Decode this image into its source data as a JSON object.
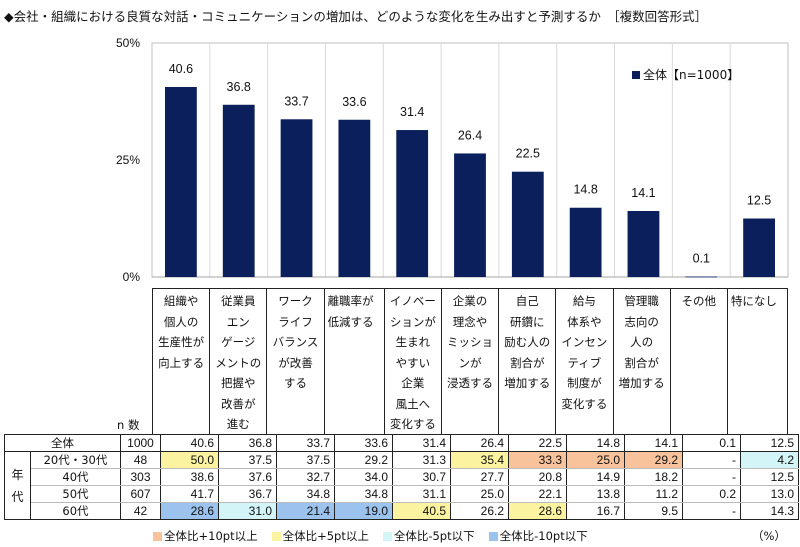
{
  "title": "◆会社・組織における良質な対話・コミュニケーションの増加は、どのような変化を生み出すと予測するか　［複数回答形式］",
  "colors": {
    "bar": "#0b1f5c",
    "plus10": "#f8c29a",
    "plus5": "#fbf3a0",
    "minus5": "#d4f5f8",
    "minus10": "#9cc3ee",
    "grid": "#d9d9d9"
  },
  "chart_data": {
    "type": "bar",
    "title": "◆会社・組織における良質な対話・コミュニケーションの増加は、どのような変化を生み出すと予測するか　［複数回答形式］",
    "xlabel": "",
    "ylabel": "",
    "ylim": [
      0,
      50
    ],
    "yticks": [
      "0%",
      "25%",
      "50%"
    ],
    "ytick_values": [
      0,
      25,
      50
    ],
    "legend": {
      "label": "全体【n=1000】",
      "placement": "top-right"
    },
    "categories": [
      [
        "組織や",
        "個人の",
        "生産性が",
        "向上する"
      ],
      [
        "従業員",
        "エン",
        "ゲージ",
        "メントの",
        "把握や",
        "改善が",
        "進む"
      ],
      [
        "ワーク",
        "ライフ",
        "バランス",
        "が改善",
        "する"
      ],
      [
        "離職率が",
        "低減する"
      ],
      [
        "イノベー",
        "ションが",
        "生まれ",
        "やすい",
        "企業",
        "風土へ",
        "変化する"
      ],
      [
        "企業の",
        "理念や",
        "ミッショ",
        "ンが",
        "浸透する"
      ],
      [
        "自己",
        "研鑽に",
        "励む人の",
        "割合が",
        "増加する"
      ],
      [
        "給与",
        "体系や",
        "インセン",
        "ティブ",
        "制度が",
        "変化する"
      ],
      [
        "管理職",
        "志向の",
        "人の",
        "割合が",
        "増加する"
      ],
      [
        "その他"
      ],
      [
        "特になし"
      ]
    ],
    "series": [
      {
        "name": "全体【n=1000】",
        "values": [
          40.6,
          36.8,
          33.7,
          33.6,
          31.4,
          26.4,
          22.5,
          14.8,
          14.1,
          0.1,
          12.5
        ]
      }
    ],
    "data_labels": [
      "40.6",
      "36.8",
      "33.7",
      "33.6",
      "31.4",
      "26.4",
      "22.5",
      "14.8",
      "14.1",
      "0.1",
      "12.5"
    ],
    "grid": true
  },
  "table": {
    "n_header": "n 数",
    "group_label": "年代",
    "total_row": {
      "label": "全体",
      "n": "1000",
      "values": [
        "40.6",
        "36.8",
        "33.7",
        "33.6",
        "31.4",
        "26.4",
        "22.5",
        "14.8",
        "14.1",
        "0.1",
        "12.5"
      ]
    },
    "rows": [
      {
        "label": "20代・30代",
        "n": "48",
        "values": [
          "50.0",
          "37.5",
          "37.5",
          "29.2",
          "31.3",
          "35.4",
          "33.3",
          "25.0",
          "29.2",
          "-",
          "4.2"
        ],
        "highlights": [
          "plus5",
          "",
          "",
          "",
          "",
          "plus5",
          "plus10",
          "plus10",
          "plus10",
          "",
          "minus5"
        ]
      },
      {
        "label": "40代",
        "n": "303",
        "values": [
          "38.6",
          "37.6",
          "32.7",
          "34.0",
          "30.7",
          "27.7",
          "20.8",
          "14.9",
          "18.2",
          "-",
          "12.5"
        ],
        "highlights": [
          "",
          "",
          "",
          "",
          "",
          "",
          "",
          "",
          "",
          "",
          ""
        ]
      },
      {
        "label": "50代",
        "n": "607",
        "values": [
          "41.7",
          "36.7",
          "34.8",
          "34.8",
          "31.1",
          "25.0",
          "22.1",
          "13.8",
          "11.2",
          "0.2",
          "13.0"
        ],
        "highlights": [
          "",
          "",
          "",
          "",
          "",
          "",
          "",
          "",
          "",
          "",
          ""
        ]
      },
      {
        "label": "60代",
        "n": "42",
        "values": [
          "28.6",
          "31.0",
          "21.4",
          "19.0",
          "40.5",
          "26.2",
          "28.6",
          "16.7",
          "9.5",
          "-",
          "14.3"
        ],
        "highlights": [
          "minus10",
          "minus5",
          "minus10",
          "minus10",
          "plus5",
          "",
          "plus5",
          "",
          "",
          "",
          ""
        ]
      }
    ]
  },
  "highlight_legend": [
    {
      "key": "plus10",
      "label": "全体比+10pt以上"
    },
    {
      "key": "plus5",
      "label": "全体比+5pt以上"
    },
    {
      "key": "minus5",
      "label": "全体比-5pt以下"
    },
    {
      "key": "minus10",
      "label": "全体比-10pt以下"
    }
  ],
  "unit": "（%）"
}
